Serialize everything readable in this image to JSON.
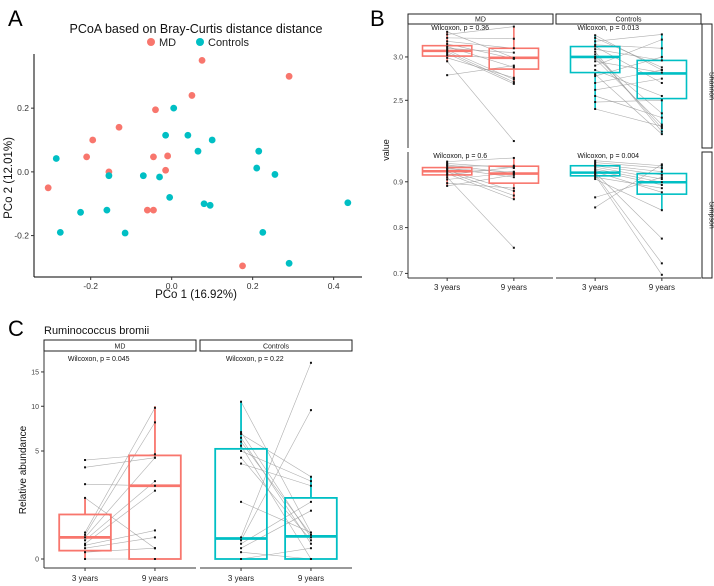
{
  "figure": {
    "panel_letters": [
      "A",
      "B",
      "C"
    ]
  },
  "colors": {
    "MD": "#F8766D",
    "Controls": "#00BFC4",
    "pair_line": "#9a9a9a",
    "dot": "#111111"
  },
  "chart_data": [
    {
      "id": "A",
      "type": "scatter",
      "title": "PCoA based on Bray-Curtis distance distance",
      "xlabel": "PCo 1 (16.92%)",
      "ylabel": "PCo 2 (12.01%)",
      "xlim": [
        -0.34,
        0.47
      ],
      "ylim": [
        -0.33,
        0.37
      ],
      "xticks": [
        -0.2,
        0.0,
        0.2,
        0.4
      ],
      "xtick_labels": [
        "-0.2",
        "0.0",
        "0.2",
        "0.4"
      ],
      "yticks": [
        -0.2,
        0.0,
        0.2
      ],
      "ytick_labels": [
        "-0.2",
        "0.0",
        "0.2"
      ],
      "legend": {
        "placement": "top",
        "entries": [
          "MD",
          "Controls"
        ]
      },
      "grid": false,
      "series": [
        {
          "name": "MD",
          "points": [
            [
              0.075,
              0.35
            ],
            [
              0.29,
              0.3
            ],
            [
              0.05,
              0.24
            ],
            [
              -0.04,
              0.195
            ],
            [
              -0.13,
              0.14
            ],
            [
              -0.195,
              0.1
            ],
            [
              -0.01,
              0.05
            ],
            [
              -0.21,
              0.047
            ],
            [
              -0.045,
              0.047
            ],
            [
              -0.155,
              0.0
            ],
            [
              -0.015,
              0.005
            ],
            [
              -0.305,
              -0.05
            ],
            [
              -0.06,
              -0.12
            ],
            [
              -0.045,
              -0.12
            ],
            [
              0.175,
              -0.295
            ]
          ]
        },
        {
          "name": "Controls",
          "points": [
            [
              0.005,
              0.2
            ],
            [
              -0.015,
              0.115
            ],
            [
              0.04,
              0.115
            ],
            [
              0.065,
              0.065
            ],
            [
              0.1,
              0.1
            ],
            [
              0.215,
              0.065
            ],
            [
              -0.285,
              0.042
            ],
            [
              0.21,
              0.012
            ],
            [
              0.255,
              -0.008
            ],
            [
              -0.155,
              -0.012
            ],
            [
              -0.07,
              -0.012
            ],
            [
              -0.03,
              -0.016
            ],
            [
              -0.005,
              -0.08
            ],
            [
              0.08,
              -0.1
            ],
            [
              0.095,
              -0.105
            ],
            [
              0.435,
              -0.097
            ],
            [
              -0.16,
              -0.12
            ],
            [
              -0.225,
              -0.127
            ],
            [
              -0.275,
              -0.19
            ],
            [
              -0.115,
              -0.192
            ],
            [
              0.225,
              -0.19
            ],
            [
              0.29,
              -0.287
            ]
          ]
        }
      ]
    },
    {
      "id": "B",
      "type": "box",
      "ylabel": "value",
      "facets_col": [
        "MD",
        "Controls"
      ],
      "facets_row": [
        "Shannon",
        "Simpson"
      ],
      "categories": [
        "3 years",
        "9 years"
      ],
      "rows": [
        {
          "name": "Shannon",
          "ylim": [
            1.95,
            3.38
          ],
          "yticks": [
            2.5,
            3.0
          ],
          "ytick_labels": [
            "2.5",
            "3.0"
          ],
          "panels": [
            {
              "group": "MD",
              "annotation": "Wilcoxon, p = 0.36",
              "boxes": [
                {
                  "category": "3 years",
                  "q1": 3.01,
                  "median": 3.07,
                  "q3": 3.13,
                  "lo": 2.95,
                  "hi": 3.29
                },
                {
                  "category": "9 years",
                  "q1": 2.86,
                  "median": 2.99,
                  "q3": 3.1,
                  "lo": 2.69,
                  "hi": 3.35
                }
              ],
              "pairs": [
                [
                  3.29,
                  2.99
                ],
                [
                  3.26,
                  3.35
                ],
                [
                  3.22,
                  3.21
                ],
                [
                  3.18,
                  3.1
                ],
                [
                  3.15,
                  2.98
                ],
                [
                  3.12,
                  2.88
                ],
                [
                  3.1,
                  3.05
                ],
                [
                  3.08,
                  2.74
                ],
                [
                  3.06,
                  2.71
                ],
                [
                  3.04,
                  2.69
                ],
                [
                  3.02,
                  2.98
                ],
                [
                  2.99,
                  2.76
                ],
                [
                  2.95,
                  2.03
                ],
                [
                  2.79,
                  2.9
                ]
              ]
            },
            {
              "group": "Controls",
              "annotation": "Wilcoxon, p = 0.013",
              "boxes": [
                {
                  "category": "3 years",
                  "q1": 2.82,
                  "median": 3.0,
                  "q3": 3.12,
                  "lo": 2.4,
                  "hi": 3.25
                },
                {
                  "category": "9 years",
                  "q1": 2.52,
                  "median": 2.81,
                  "q3": 2.96,
                  "lo": 2.11,
                  "hi": 3.26
                }
              ],
              "pairs": [
                [
                  3.25,
                  2.85
                ],
                [
                  3.22,
                  2.88
                ],
                [
                  3.18,
                  3.26
                ],
                [
                  3.14,
                  3.1
                ],
                [
                  3.12,
                  2.7
                ],
                [
                  3.09,
                  2.96
                ],
                [
                  3.06,
                  2.14
                ],
                [
                  3.03,
                  2.18
                ],
                [
                  3.0,
                  2.35
                ],
                [
                  2.98,
                  2.22
                ],
                [
                  2.95,
                  2.82
                ],
                [
                  2.9,
                  3.2
                ],
                [
                  2.85,
                  2.55
                ],
                [
                  2.8,
                  2.11
                ],
                [
                  2.78,
                  3.0
                ],
                [
                  2.7,
                  2.85
                ],
                [
                  2.62,
                  2.75
                ],
                [
                  2.55,
                  2.3
                ],
                [
                  2.48,
                  2.5
                ],
                [
                  2.4,
                  2.2
                ]
              ]
            }
          ]
        },
        {
          "name": "Simpson",
          "ylim": [
            0.69,
            0.965
          ],
          "yticks": [
            0.7,
            0.8,
            0.9
          ],
          "ytick_labels": [
            "0.7",
            "0.8",
            "0.9"
          ],
          "panels": [
            {
              "group": "MD",
              "annotation": "Wilcoxon, p = 0.6",
              "boxes": [
                {
                  "category": "3 years",
                  "q1": 0.915,
                  "median": 0.923,
                  "q3": 0.931,
                  "lo": 0.891,
                  "hi": 0.944
                },
                {
                  "category": "9 years",
                  "q1": 0.897,
                  "median": 0.918,
                  "q3": 0.934,
                  "lo": 0.861,
                  "hi": 0.952
                }
              ],
              "pairs": [
                [
                  0.944,
                  0.952
                ],
                [
                  0.94,
                  0.93
                ],
                [
                  0.937,
                  0.918
                ],
                [
                  0.934,
                  0.935
                ],
                [
                  0.93,
                  0.91
                ],
                [
                  0.928,
                  0.922
                ],
                [
                  0.925,
                  0.88
                ],
                [
                  0.922,
                  0.87
                ],
                [
                  0.918,
                  0.862
                ],
                [
                  0.915,
                  0.932
                ],
                [
                  0.91,
                  0.756
                ],
                [
                  0.905,
                  0.92
                ],
                [
                  0.897,
                  0.886
                ],
                [
                  0.891,
                  0.915
                ]
              ]
            },
            {
              "group": "Controls",
              "annotation": "Wilcoxon, p = 0.004",
              "boxes": [
                {
                  "category": "3 years",
                  "q1": 0.913,
                  "median": 0.92,
                  "q3": 0.935,
                  "lo": 0.906,
                  "hi": 0.946
                },
                {
                  "category": "9 years",
                  "q1": 0.873,
                  "median": 0.899,
                  "q3": 0.918,
                  "lo": 0.838,
                  "hi": 0.938
                }
              ],
              "pairs": [
                [
                  0.946,
                  0.935
                ],
                [
                  0.942,
                  0.93
                ],
                [
                  0.938,
                  0.922
                ],
                [
                  0.935,
                  0.915
                ],
                [
                  0.932,
                  0.906
                ],
                [
                  0.928,
                  0.899
                ],
                [
                  0.925,
                  0.893
                ],
                [
                  0.922,
                  0.877
                ],
                [
                  0.92,
                  0.776
                ],
                [
                  0.917,
                  0.722
                ],
                [
                  0.914,
                  0.697
                ],
                [
                  0.91,
                  0.886
                ],
                [
                  0.906,
                  0.838
                ],
                [
                  0.866,
                  0.91
                ],
                [
                  0.844,
                  0.938
                ]
              ]
            }
          ]
        }
      ]
    },
    {
      "id": "C",
      "type": "box",
      "title": "Ruminococcus bromii",
      "ylabel": "Relative abundance",
      "yscale": "sqrt",
      "ylim": [
        0,
        17
      ],
      "yticks": [
        0,
        5,
        10,
        15
      ],
      "ytick_labels": [
        "0",
        "5",
        "10",
        "15"
      ],
      "facets_col": [
        "MD",
        "Controls"
      ],
      "categories": [
        "3 years",
        "9 years"
      ],
      "panels": [
        {
          "group": "MD",
          "annotation": "Wilcoxon, p = 0.045",
          "boxes": [
            {
              "category": "3 years",
              "q1": 0.03,
              "median": 0.2,
              "q3": 0.85,
              "lo": 0.0,
              "hi": 1.6
            },
            {
              "category": "9 years",
              "q1": 0.0,
              "median": 2.3,
              "q3": 4.6,
              "lo": 0.0,
              "hi": 10.0
            }
          ],
          "pairs": [
            [
              4.2,
              4.7
            ],
            [
              3.6,
              4.4
            ],
            [
              2.4,
              2.3
            ],
            [
              1.6,
              0.05
            ],
            [
              0.3,
              9.8
            ],
            [
              0.25,
              8.0
            ],
            [
              0.2,
              4.4
            ],
            [
              0.15,
              2.6
            ],
            [
              0.1,
              2.0
            ],
            [
              0.08,
              0.35
            ],
            [
              0.05,
              0.2
            ],
            [
              0.02,
              0.05
            ],
            [
              0.0,
              0.0
            ]
          ]
        },
        {
          "group": "Controls",
          "annotation": "Wilcoxon, p = 0.22",
          "boxes": [
            {
              "category": "3 years",
              "q1": 0.0,
              "median": 0.18,
              "q3": 5.2,
              "lo": 0.0,
              "hi": 10.6
            },
            {
              "category": "9 years",
              "q1": 0.0,
              "median": 0.22,
              "q3": 1.6,
              "lo": 0.0,
              "hi": 2.9
            }
          ],
          "pairs": [
            [
              10.6,
              0.3
            ],
            [
              6.9,
              0.2
            ],
            [
              6.7,
              2.9
            ],
            [
              6.3,
              0.1
            ],
            [
              5.9,
              0.25
            ],
            [
              5.5,
              0.0
            ],
            [
              5.0,
              2.6
            ],
            [
              4.4,
              0.15
            ],
            [
              3.9,
              2.3
            ],
            [
              1.4,
              0.3
            ],
            [
              0.2,
              16.5
            ],
            [
              0.15,
              9.5
            ],
            [
              0.1,
              1.4
            ],
            [
              0.05,
              1.0
            ],
            [
              0.02,
              0.0
            ],
            [
              0.0,
              0.05
            ]
          ]
        }
      ]
    }
  ]
}
